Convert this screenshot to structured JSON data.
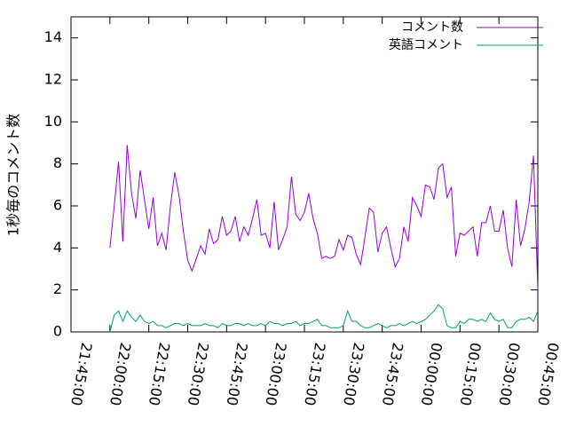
{
  "chart_data": {
    "type": "line",
    "ylabel": "1秒毎のコメント数",
    "xlim": [
      "21:45:00",
      "00:45:00"
    ],
    "xticks": [
      "21:45:00",
      "22:00:00",
      "22:15:00",
      "22:30:00",
      "22:45:00",
      "23:00:00",
      "23:15:00",
      "23:30:00",
      "23:45:00",
      "00:00:00",
      "00:15:00",
      "00:30:00",
      "00:45:00"
    ],
    "ylim": [
      0,
      15
    ],
    "yticks": [
      0,
      2,
      4,
      6,
      8,
      10,
      12,
      14
    ],
    "legend": "top right",
    "x": [
      "22:00:00",
      "22:01:40",
      "22:03:20",
      "22:05:00",
      "22:06:40",
      "22:08:20",
      "22:10:00",
      "22:11:40",
      "22:13:20",
      "22:15:00",
      "22:16:40",
      "22:18:20",
      "22:20:00",
      "22:21:40",
      "22:23:20",
      "22:25:00",
      "22:26:40",
      "22:28:20",
      "22:30:00",
      "22:31:40",
      "22:33:20",
      "22:35:00",
      "22:36:40",
      "22:38:20",
      "22:40:00",
      "22:41:40",
      "22:43:20",
      "22:45:00",
      "22:46:40",
      "22:48:20",
      "22:50:00",
      "22:51:40",
      "22:53:20",
      "22:55:00",
      "22:56:40",
      "22:58:20",
      "23:00:00",
      "23:01:40",
      "23:03:20",
      "23:05:00",
      "23:06:40",
      "23:08:20",
      "23:10:00",
      "23:11:40",
      "23:13:20",
      "23:15:00",
      "23:16:40",
      "23:18:20",
      "23:20:00",
      "23:21:40",
      "23:23:20",
      "23:25:00",
      "23:26:40",
      "23:28:20",
      "23:30:00",
      "23:31:40",
      "23:33:20",
      "23:35:00",
      "23:36:40",
      "23:38:20",
      "23:40:00",
      "23:41:40",
      "23:43:20",
      "23:45:00",
      "23:46:40",
      "23:48:20",
      "23:50:00",
      "23:51:40",
      "23:53:20",
      "23:55:00",
      "23:56:40",
      "23:58:20",
      "00:00:00",
      "00:01:40",
      "00:03:20",
      "00:05:00",
      "00:06:40",
      "00:08:20",
      "00:10:00",
      "00:11:40",
      "00:13:20",
      "00:15:00",
      "00:16:40",
      "00:18:20",
      "00:20:00",
      "00:21:40",
      "00:23:20",
      "00:25:00",
      "00:26:40",
      "00:28:20",
      "00:30:00",
      "00:31:40",
      "00:33:20",
      "00:35:00",
      "00:36:40",
      "00:38:20",
      "00:40:00",
      "00:41:40",
      "00:43:20",
      "00:45:00"
    ],
    "series": [
      {
        "name": "コメント数",
        "color": "#9400d3",
        "values": [
          4.0,
          6.0,
          8.1,
          4.3,
          8.9,
          6.6,
          5.4,
          7.7,
          6.3,
          4.9,
          6.4,
          4.1,
          4.7,
          3.9,
          6.0,
          7.6,
          6.5,
          4.8,
          3.4,
          2.9,
          3.5,
          4.1,
          3.7,
          4.9,
          4.2,
          4.4,
          5.5,
          4.6,
          4.8,
          5.5,
          4.3,
          5.0,
          4.6,
          5.4,
          6.3,
          4.6,
          4.7,
          4.0,
          6.2,
          3.9,
          4.4,
          5.0,
          7.4,
          5.6,
          5.3,
          5.7,
          6.6,
          5.4,
          4.7,
          3.5,
          3.6,
          3.5,
          3.6,
          4.4,
          3.9,
          4.6,
          4.5,
          3.7,
          3.2,
          4.5,
          5.9,
          5.7,
          3.8,
          4.7,
          5.0,
          4.0,
          3.1,
          3.5,
          5.0,
          4.3,
          6.4,
          6.0,
          5.5,
          7.0,
          6.9,
          6.3,
          7.8,
          8.0,
          6.4,
          6.9,
          3.6,
          4.7,
          4.6,
          4.8,
          5.0,
          3.6,
          5.2,
          5.2,
          6.0,
          4.8,
          4.8,
          5.8,
          4.0,
          3.1,
          6.3,
          4.1,
          4.9,
          6.2,
          8.4,
          2.0
        ]
      },
      {
        "name": "英語コメント",
        "color": "#009e73",
        "values": [
          0.0,
          0.8,
          1.0,
          0.5,
          1.0,
          0.7,
          0.5,
          0.8,
          0.5,
          0.4,
          0.5,
          0.3,
          0.3,
          0.2,
          0.3,
          0.4,
          0.4,
          0.3,
          0.4,
          0.3,
          0.3,
          0.3,
          0.4,
          0.3,
          0.3,
          0.2,
          0.4,
          0.3,
          0.3,
          0.4,
          0.4,
          0.3,
          0.4,
          0.3,
          0.3,
          0.4,
          0.3,
          0.5,
          0.4,
          0.4,
          0.3,
          0.4,
          0.4,
          0.5,
          0.3,
          0.4,
          0.4,
          0.5,
          0.6,
          0.3,
          0.3,
          0.2,
          0.2,
          0.2,
          0.3,
          1.0,
          0.5,
          0.5,
          0.3,
          0.2,
          0.2,
          0.3,
          0.4,
          0.3,
          0.2,
          0.3,
          0.3,
          0.4,
          0.3,
          0.4,
          0.5,
          0.4,
          0.5,
          0.6,
          0.8,
          1.0,
          1.3,
          1.1,
          0.3,
          0.2,
          0.2,
          0.5,
          0.4,
          0.6,
          0.6,
          0.5,
          0.6,
          0.5,
          0.9,
          0.6,
          0.5,
          0.6,
          0.2,
          0.2,
          0.5,
          0.6,
          0.6,
          0.7,
          0.5,
          1.0
        ]
      }
    ]
  }
}
